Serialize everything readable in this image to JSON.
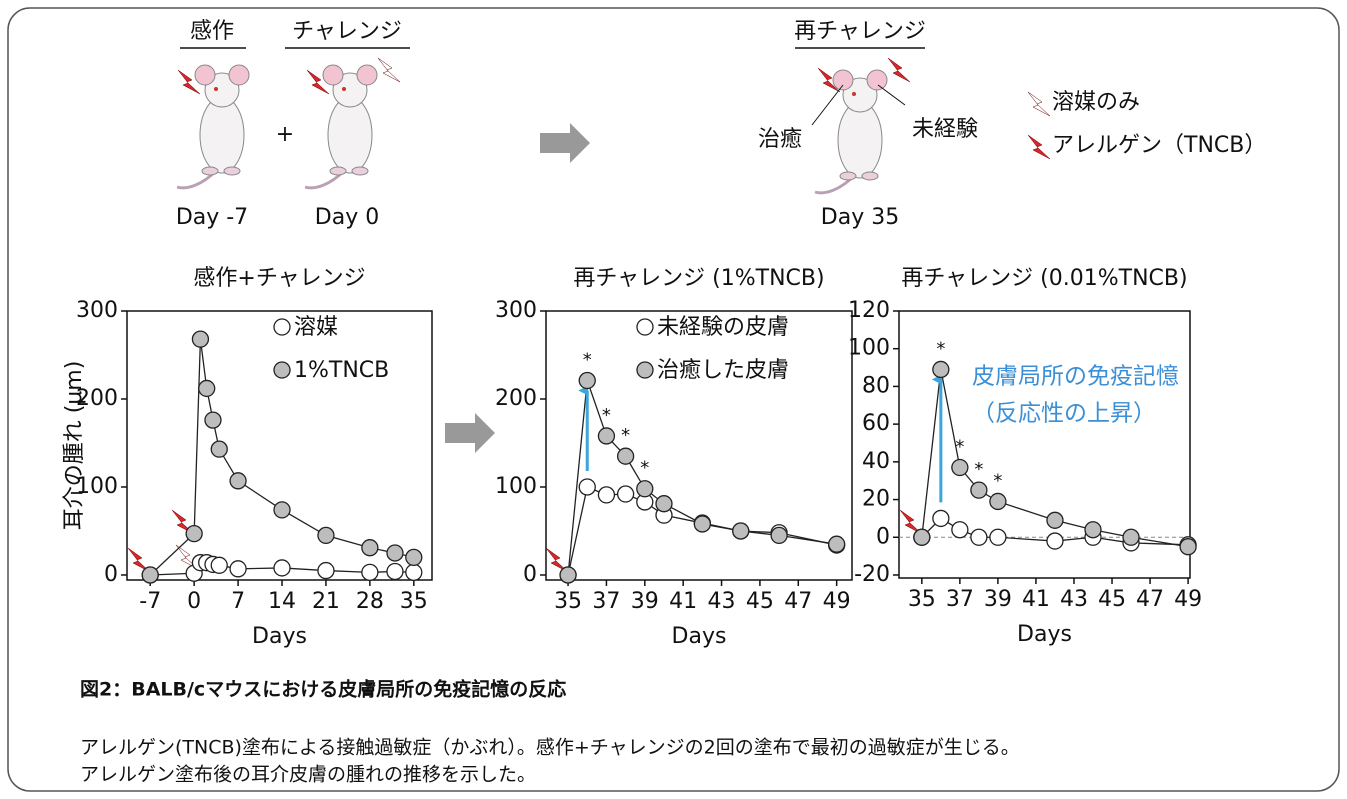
{
  "diagram": {
    "sensitize": "感作",
    "challenge": "チャレンジ",
    "plus": "+",
    "day_sensitize": "Day -7",
    "day_challenge": "Day 0",
    "rechallenge": "再チャレンジ",
    "healed": "治癒",
    "naive": "未経験",
    "day_rechallenge": "Day 35",
    "legend_vehicle": "溶媒のみ",
    "legend_allergen": "アレルゲン（TNCB）"
  },
  "chart_data": [
    {
      "type": "line",
      "title": "感作+チャレンジ",
      "x_label": "Days",
      "y_label": "耳介の腫れ (μm)",
      "x": [
        -7,
        0,
        1,
        2,
        3,
        4,
        7,
        14,
        21,
        28,
        32,
        35
      ],
      "xlim": [
        -10.7,
        37.9
      ],
      "ylim": [
        -5.7,
        300
      ],
      "xticks": [
        -7,
        0,
        7,
        14,
        21,
        28,
        35
      ],
      "yticks": [
        0,
        100,
        200,
        300
      ],
      "legend": "upper right",
      "series": [
        {
          "name": "溶媒",
          "color": "#ffffff",
          "values": [
            0,
            2,
            14,
            14,
            12,
            11,
            7,
            8,
            5,
            3,
            4,
            3
          ]
        },
        {
          "name": "1%TNCB",
          "color": "#bdbdbd",
          "values": [
            0,
            47,
            268,
            212,
            176,
            143,
            107,
            74,
            45,
            31,
            25,
            20
          ]
        }
      ]
    },
    {
      "type": "line",
      "title": "再チャレンジ (1%TNCB)",
      "x_label": "Days",
      "x": [
        35,
        36,
        37,
        38,
        39,
        40,
        42,
        44,
        46,
        49
      ],
      "xlim": [
        33.85,
        49.8
      ],
      "ylim": [
        -5.7,
        300
      ],
      "xticks": [
        35,
        37,
        39,
        41,
        43,
        45,
        47,
        49
      ],
      "yticks": [
        0,
        100,
        200,
        300
      ],
      "legend": "upper right",
      "series": [
        {
          "name": "未経験の皮膚",
          "color": "#ffffff",
          "values": [
            0,
            100,
            91,
            92,
            83,
            68,
            59,
            50,
            48,
            34
          ]
        },
        {
          "name": "治癒した皮膚",
          "color": "#bdbdbd",
          "values": [
            0,
            221,
            158,
            135,
            98,
            81,
            58,
            50,
            45,
            35
          ]
        }
      ],
      "annotations": [
        {
          "text": "*",
          "x": 36
        },
        {
          "text": "*",
          "x": 37
        },
        {
          "text": "*",
          "x": 38
        },
        {
          "text": "*",
          "x": 39
        }
      ]
    },
    {
      "type": "line",
      "title": "再チャレンジ (0.01%TNCB)",
      "x_label": "Days",
      "x": [
        35,
        36,
        37,
        38,
        39,
        42,
        44,
        46,
        49
      ],
      "xlim": [
        33.8,
        49.1
      ],
      "ylim": [
        -21.6,
        120
      ],
      "xticks": [
        35,
        37,
        39,
        41,
        43,
        45,
        47,
        49
      ],
      "yticks": [
        -20,
        0,
        20,
        40,
        60,
        80,
        100,
        120
      ],
      "zero_line": true,
      "series": [
        {
          "color": "#ffffff",
          "values": [
            0,
            10,
            4,
            0,
            0,
            -2,
            0,
            -3,
            -4
          ]
        },
        {
          "color": "#bdbdbd",
          "values": [
            0,
            89,
            37,
            25,
            19,
            9,
            4,
            0,
            -5
          ]
        }
      ],
      "annotations": [
        {
          "text": "*",
          "x": 36
        },
        {
          "text": "*",
          "x": 37
        },
        {
          "text": "*",
          "x": 38
        },
        {
          "text": "*",
          "x": 39
        }
      ],
      "note": [
        "皮膚局所の免疫記憶",
        "（反応性の上昇）"
      ],
      "note_color": "#3a8fd6"
    }
  ],
  "caption": {
    "title": "図2：BALB/cマウスにおける皮膚局所の免疫記憶の反応",
    "lines": [
      "アレルゲン(TNCB)塗布による接触過敏症（かぶれ）。感作+チャレンジの2回の塗布で最初の過敏症が生じる。",
      "アレルゲン塗布後の耳介皮膚の腫れの推移を示した。"
    ]
  }
}
